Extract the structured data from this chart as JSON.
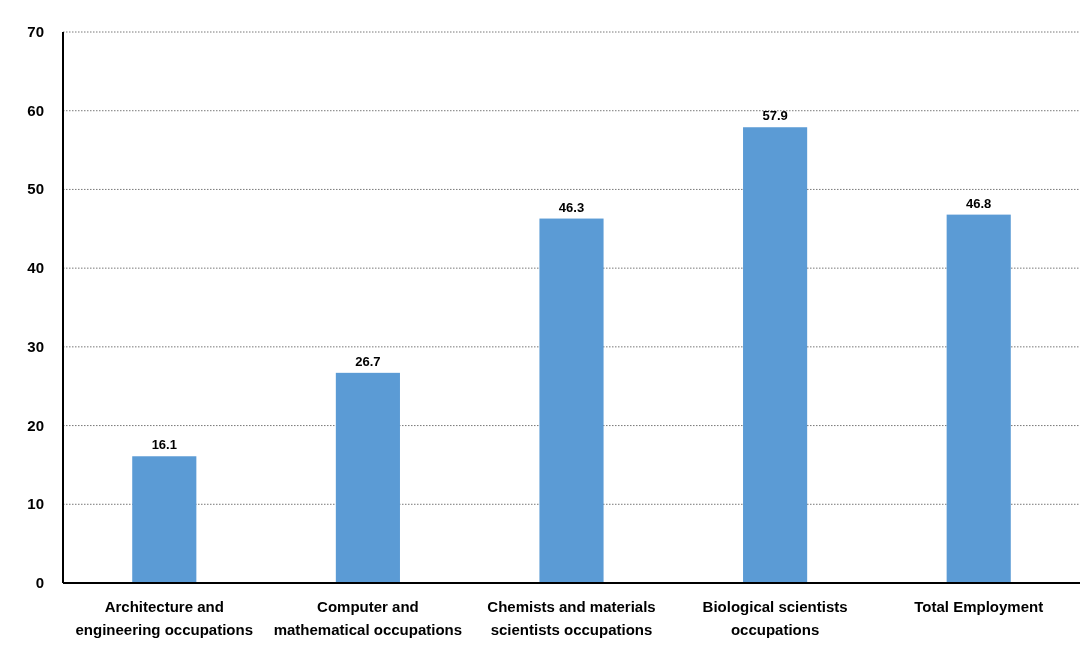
{
  "chart_data": {
    "type": "bar",
    "categories": [
      "Architecture and engineering occupations",
      "Computer and mathematical occupations",
      "Chemists and materials scientists occupations",
      "Biological scientists occupations",
      "Total Employment"
    ],
    "values": [
      16.1,
      26.7,
      46.3,
      57.9,
      46.8
    ],
    "color": "#5b9bd5",
    "ylim": [
      0,
      70
    ],
    "yticks": [
      0,
      10,
      20,
      30,
      40,
      50,
      60,
      70
    ],
    "grid": "y",
    "data_labels": true
  }
}
